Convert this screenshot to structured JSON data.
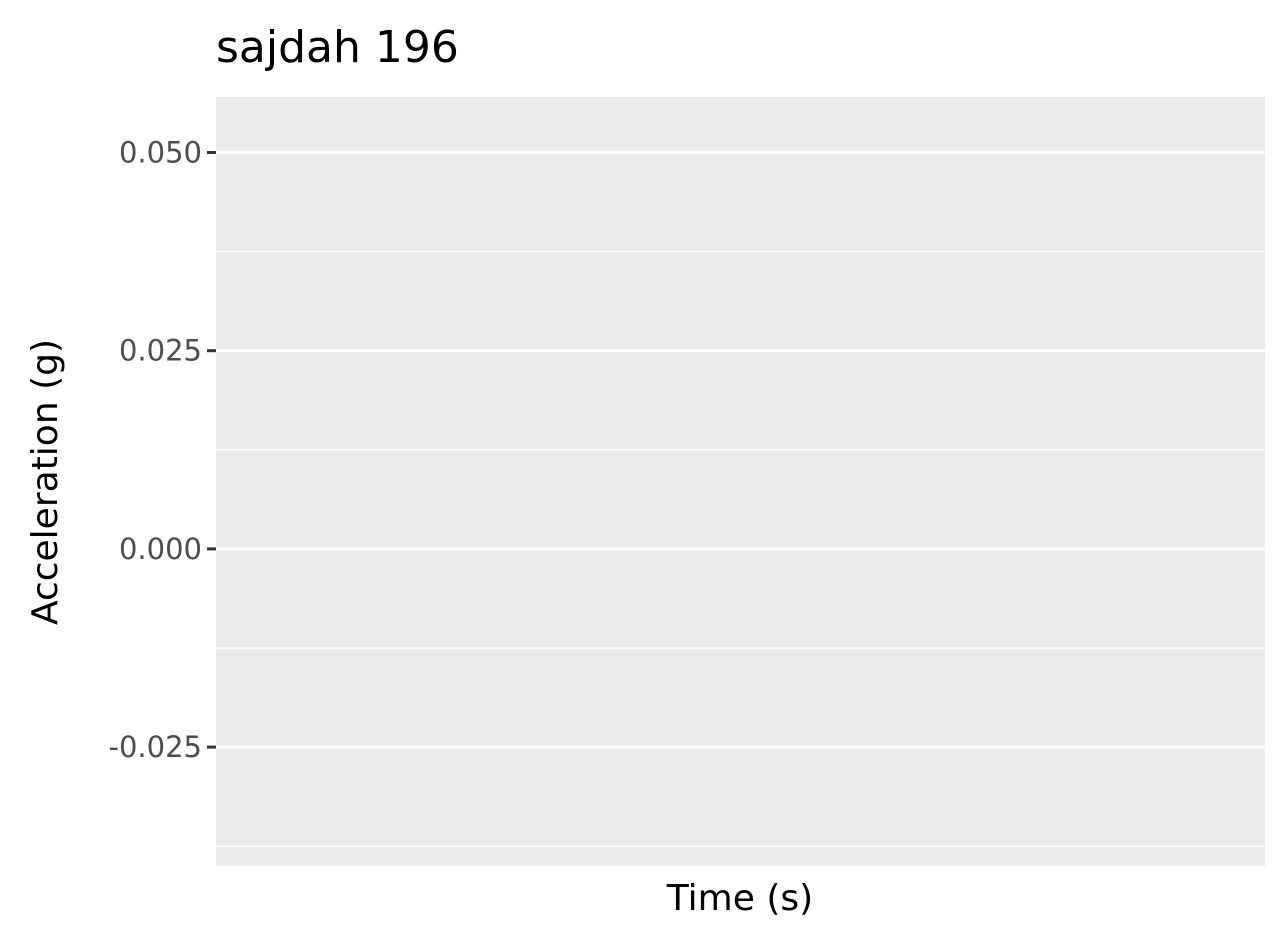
{
  "chart_data": {
    "type": "line",
    "title": "sajdah 196",
    "xlabel": "Time (s)",
    "ylabel": "Acceleration (g)",
    "ylim": [
      -0.04,
      0.057
    ],
    "yticks": [
      0.05,
      0.025,
      0.0,
      -0.025
    ],
    "ytick_labels": [
      "0.050",
      "0.025",
      "0.000",
      "-0.025"
    ],
    "series": [],
    "grid": true,
    "legend": "none",
    "colors": {
      "panel_background": "#ebebeb",
      "grid_major": "#ffffff",
      "grid_minor": "#ffffff",
      "tick_text": "#4d4d4d",
      "tick_mark": "#333333"
    }
  }
}
